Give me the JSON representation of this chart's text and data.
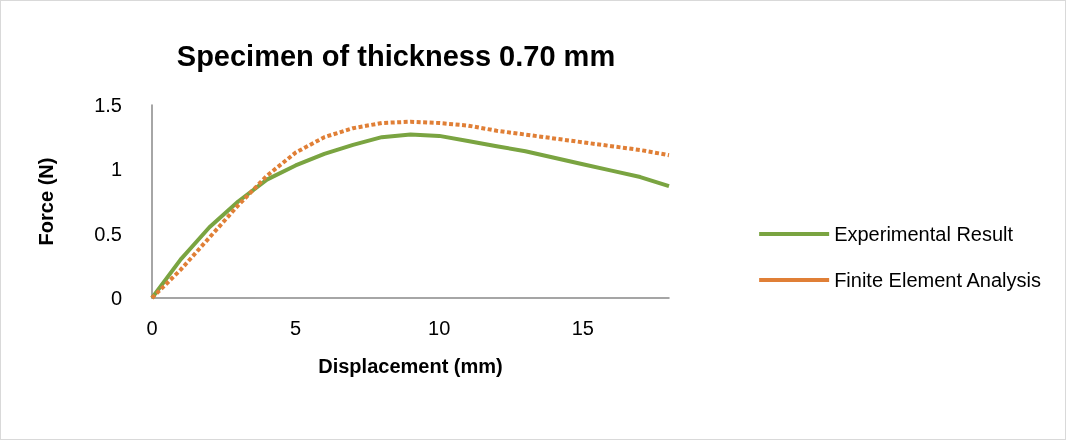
{
  "chart_data": {
    "type": "line",
    "title": "Specimen of thickness 0.70 mm",
    "xlabel": "Displacement (mm)",
    "ylabel": "Force (N)",
    "x": [
      0,
      1,
      2,
      3,
      4,
      5,
      6,
      7,
      8,
      9,
      10,
      11,
      12,
      13,
      14,
      15,
      16,
      17,
      18
    ],
    "series": [
      {
        "name": "Experimental Result",
        "color": "#7aa441",
        "line_style": "solid",
        "values": [
          0,
          0.3,
          0.55,
          0.75,
          0.92,
          1.03,
          1.12,
          1.19,
          1.25,
          1.27,
          1.26,
          1.22,
          1.18,
          1.14,
          1.09,
          1.04,
          0.99,
          0.94,
          0.87
        ]
      },
      {
        "name": "Finite Element Analysis",
        "color": "#e07f36",
        "line_style": "dashed",
        "values": [
          0,
          0.22,
          0.47,
          0.72,
          0.95,
          1.13,
          1.25,
          1.32,
          1.36,
          1.37,
          1.36,
          1.34,
          1.3,
          1.27,
          1.24,
          1.21,
          1.18,
          1.15,
          1.11
        ]
      }
    ],
    "xlim": [
      0,
      18
    ],
    "xticks": [
      0,
      5,
      10,
      15
    ],
    "ylim": [
      0,
      1.5
    ],
    "yticks": [
      0,
      0.5,
      1,
      1.5
    ],
    "grid": false,
    "legend": "right",
    "marker": "none"
  }
}
